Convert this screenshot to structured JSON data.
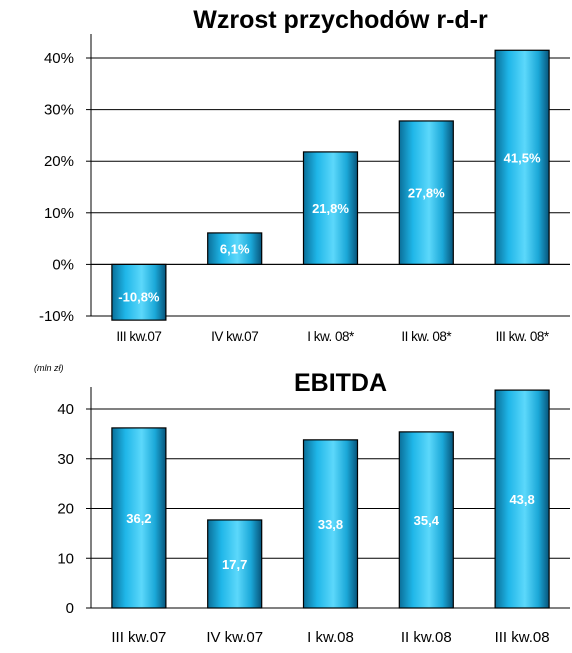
{
  "chart_data": [
    {
      "type": "bar",
      "title": "Wzrost przychodów r-d-r",
      "categories": [
        "III kw.07",
        "IV kw.07",
        "I kw. 08*",
        "II kw. 08*",
        "III kw. 08*"
      ],
      "values": [
        -10.8,
        6.1,
        21.8,
        27.8,
        41.5
      ],
      "value_labels": [
        "-10,8%",
        "6,1%",
        "21,8%",
        "27,8%",
        "41,5%"
      ],
      "ylim": [
        -10,
        40
      ],
      "yticks": [
        -10,
        0,
        10,
        20,
        30,
        40
      ],
      "ytick_labels": [
        "-10%",
        "0%",
        "10%",
        "20%",
        "30%",
        "40%"
      ],
      "unit_note": "",
      "grid": true,
      "bar_color": "#1fb6e8"
    },
    {
      "type": "bar",
      "title": "EBITDA",
      "categories": [
        "III kw.07",
        "IV kw.07",
        "I kw.08",
        "II kw.08",
        "III kw.08"
      ],
      "values": [
        36.2,
        17.7,
        33.8,
        35.4,
        43.8
      ],
      "value_labels": [
        "36,2",
        "17,7",
        "33,8",
        "35,4",
        "43,8"
      ],
      "ylim": [
        0,
        40
      ],
      "yticks": [
        0,
        10,
        20,
        30,
        40
      ],
      "ytick_labels": [
        "0",
        "10",
        "20",
        "30",
        "40"
      ],
      "unit_note": "(mln zł)",
      "grid": true,
      "bar_color": "#1fb6e8"
    }
  ]
}
